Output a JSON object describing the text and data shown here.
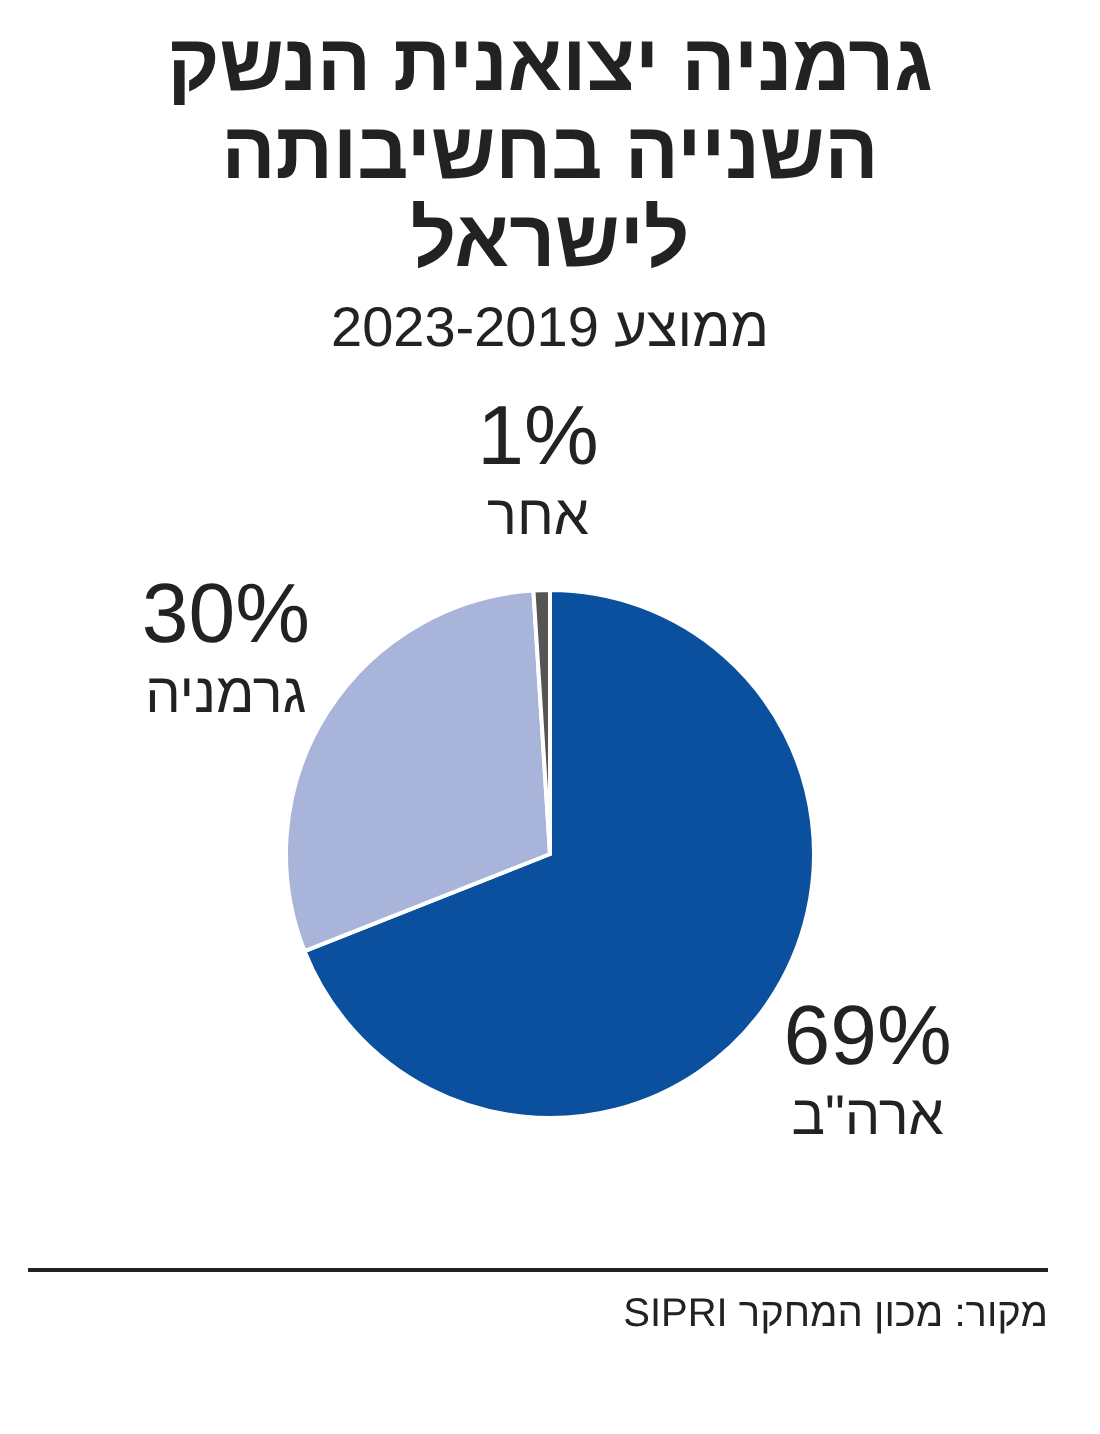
{
  "chart_data": {
    "type": "pie",
    "title": "גרמניה יצואנית הנשק השנייה בחשיבותה לישראל",
    "subtitle": "ממוצע 2023-2019",
    "categories": [
      "ארה\"ב",
      "גרמניה",
      "אחר"
    ],
    "values": [
      69,
      30,
      1
    ],
    "value_labels": [
      "69%",
      "30%",
      "1%"
    ],
    "colors": [
      "#0b4f9f",
      "#a9b4db",
      "#555555"
    ],
    "annotations": [
      "מקור: מכון המחקר SIPRI"
    ]
  }
}
